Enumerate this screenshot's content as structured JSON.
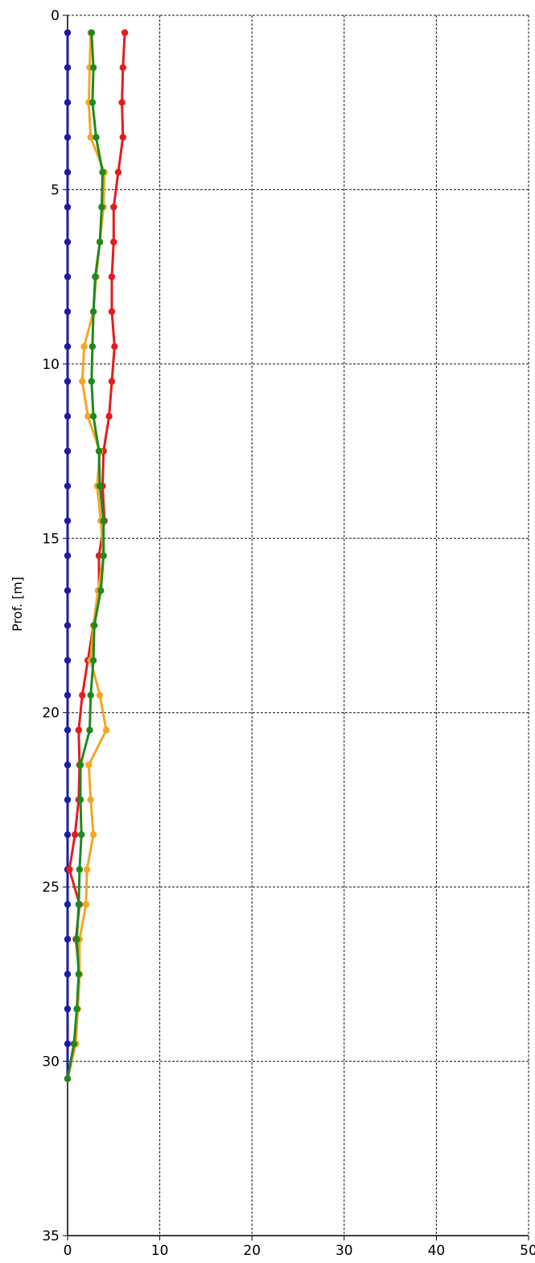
{
  "chart_data": {
    "type": "line",
    "title": "",
    "xlabel": "",
    "ylabel": "Prof. [m]",
    "xlim": [
      0,
      50
    ],
    "ylim": [
      35,
      0
    ],
    "y_inverted": true,
    "grid": true,
    "xticks": [
      "0",
      "10",
      "20",
      "30",
      "40",
      "50"
    ],
    "yticks": [
      "0",
      "5",
      "10",
      "15",
      "20",
      "25",
      "30",
      "35"
    ],
    "series": [
      {
        "color": "#1c1ca8",
        "points": [
          [
            0,
            0.5
          ],
          [
            0,
            1.5
          ],
          [
            0,
            2.5
          ],
          [
            0,
            3.5
          ],
          [
            0,
            4.5
          ],
          [
            0,
            5.5
          ],
          [
            0,
            6.5
          ],
          [
            0,
            7.5
          ],
          [
            0,
            8.5
          ],
          [
            0,
            9.5
          ],
          [
            0,
            10.5
          ],
          [
            0,
            11.5
          ],
          [
            0,
            12.5
          ],
          [
            0,
            13.5
          ],
          [
            0,
            14.5
          ],
          [
            0,
            15.5
          ],
          [
            0,
            16.5
          ],
          [
            0,
            17.5
          ],
          [
            0,
            18.5
          ],
          [
            0,
            19.5
          ],
          [
            0,
            20.5
          ],
          [
            0,
            21.5
          ],
          [
            0,
            22.5
          ],
          [
            0,
            23.5
          ],
          [
            0,
            24.5
          ],
          [
            0,
            25.5
          ],
          [
            0,
            26.5
          ],
          [
            0,
            27.5
          ],
          [
            0,
            28.5
          ],
          [
            0,
            29.5
          ],
          [
            0,
            30.5
          ]
        ]
      },
      {
        "color": "#e51c1c",
        "points": [
          [
            6.2,
            0.5
          ],
          [
            6.0,
            1.5
          ],
          [
            5.9,
            2.5
          ],
          [
            6.0,
            3.5
          ],
          [
            5.5,
            4.5
          ],
          [
            5.0,
            5.5
          ],
          [
            5.0,
            6.5
          ],
          [
            4.8,
            7.5
          ],
          [
            4.8,
            8.5
          ],
          [
            5.1,
            9.5
          ],
          [
            4.8,
            10.5
          ],
          [
            4.5,
            11.5
          ],
          [
            3.9,
            12.5
          ],
          [
            3.8,
            13.5
          ],
          [
            4.0,
            14.5
          ],
          [
            3.4,
            15.5
          ],
          [
            3.4,
            16.5
          ],
          [
            2.8,
            17.5
          ],
          [
            2.2,
            18.5
          ],
          [
            1.6,
            19.5
          ],
          [
            1.2,
            20.5
          ],
          [
            1.3,
            21.5
          ],
          [
            1.2,
            22.5
          ],
          [
            0.8,
            23.5
          ],
          [
            0.2,
            24.5
          ],
          [
            1.3,
            25.5
          ],
          [
            0.9,
            26.5
          ],
          [
            1.3,
            27.5
          ],
          [
            1.1,
            28.5
          ],
          [
            0.7,
            29.5
          ],
          [
            0,
            30.5
          ]
        ]
      },
      {
        "color": "#f5a623",
        "points": [
          [
            2.5,
            0.5
          ],
          [
            2.4,
            1.5
          ],
          [
            2.3,
            2.5
          ],
          [
            2.5,
            3.5
          ],
          [
            4.0,
            4.5
          ],
          [
            3.9,
            5.5
          ],
          [
            3.5,
            6.5
          ],
          [
            3.1,
            7.5
          ],
          [
            2.8,
            8.5
          ],
          [
            1.8,
            9.5
          ],
          [
            1.6,
            10.5
          ],
          [
            2.2,
            11.5
          ],
          [
            3.5,
            12.5
          ],
          [
            3.2,
            13.5
          ],
          [
            3.6,
            14.5
          ],
          [
            3.9,
            15.5
          ],
          [
            3.3,
            16.5
          ],
          [
            2.8,
            17.5
          ],
          [
            2.5,
            18.5
          ],
          [
            3.5,
            19.5
          ],
          [
            4.2,
            20.5
          ],
          [
            2.3,
            21.5
          ],
          [
            2.5,
            22.5
          ],
          [
            2.8,
            23.5
          ],
          [
            2.1,
            24.5
          ],
          [
            2.0,
            25.5
          ],
          [
            1.3,
            26.5
          ],
          [
            1.3,
            27.5
          ],
          [
            1.1,
            28.5
          ],
          [
            0.9,
            29.5
          ],
          [
            0,
            30.5
          ]
        ]
      },
      {
        "color": "#1e8a1e",
        "points": [
          [
            2.6,
            0.5
          ],
          [
            2.8,
            1.5
          ],
          [
            2.7,
            2.5
          ],
          [
            3.1,
            3.5
          ],
          [
            3.8,
            4.5
          ],
          [
            3.7,
            5.5
          ],
          [
            3.5,
            6.5
          ],
          [
            3.0,
            7.5
          ],
          [
            2.8,
            8.5
          ],
          [
            2.7,
            9.5
          ],
          [
            2.6,
            10.5
          ],
          [
            2.8,
            11.5
          ],
          [
            3.4,
            12.5
          ],
          [
            3.5,
            13.5
          ],
          [
            3.9,
            14.5
          ],
          [
            3.9,
            15.5
          ],
          [
            3.6,
            16.5
          ],
          [
            2.9,
            17.5
          ],
          [
            2.8,
            18.5
          ],
          [
            2.5,
            19.5
          ],
          [
            2.4,
            20.5
          ],
          [
            1.4,
            21.5
          ],
          [
            1.4,
            22.5
          ],
          [
            1.5,
            23.5
          ],
          [
            1.3,
            24.5
          ],
          [
            1.2,
            25.5
          ],
          [
            1.0,
            26.5
          ],
          [
            1.2,
            27.5
          ],
          [
            1.0,
            28.5
          ],
          [
            0.7,
            29.5
          ],
          [
            0,
            30.5
          ]
        ]
      }
    ]
  }
}
